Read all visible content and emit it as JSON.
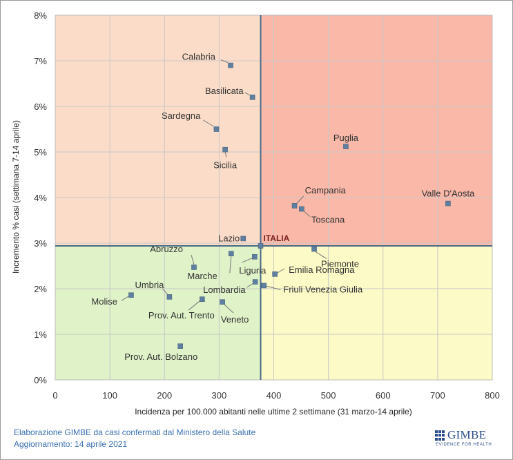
{
  "chart_data": {
    "type": "scatter",
    "xlabel": "Incidenza per 100.000  abitanti nelle ultime 2 settimane (31 marzo-14 aprile)",
    "ylabel": "Incremento % casi (settimana 7-14 aprile)",
    "xlim": [
      0,
      800
    ],
    "ylim": [
      0,
      8
    ],
    "x_ticks": [
      "0",
      "100",
      "200",
      "300",
      "400",
      "500",
      "600",
      "700",
      "800"
    ],
    "y_ticks": [
      "0%",
      "1%",
      "2%",
      "3%",
      "4%",
      "5%",
      "6%",
      "7%",
      "8%"
    ],
    "grid": true,
    "reference": {
      "label": "ITALIA",
      "x": 376,
      "y": 2.94
    },
    "quadrant_colors": {
      "top_left": "#fbdcc8",
      "top_right": "#f9b8a8",
      "bottom_left": "#dff2c8",
      "bottom_right": "#fcfac6"
    },
    "marker_color": "#5f7fa0",
    "points": [
      {
        "name": "Calabria",
        "x": 321,
        "y": 6.9
      },
      {
        "name": "Basilicata",
        "x": 361,
        "y": 6.2
      },
      {
        "name": "Sardegna",
        "x": 295,
        "y": 5.5
      },
      {
        "name": "Sicilia",
        "x": 311,
        "y": 5.05
      },
      {
        "name": "Puglia",
        "x": 532,
        "y": 5.12
      },
      {
        "name": "Campania",
        "x": 438,
        "y": 3.82
      },
      {
        "name": "Toscana",
        "x": 451,
        "y": 3.75
      },
      {
        "name": "Valle D'Aosta",
        "x": 719,
        "y": 3.87
      },
      {
        "name": "Lazio",
        "x": 344,
        "y": 3.1
      },
      {
        "name": "Piemonte",
        "x": 474,
        "y": 2.87
      },
      {
        "name": "Abruzzo",
        "x": 254,
        "y": 2.47
      },
      {
        "name": "Marche",
        "x": 322,
        "y": 2.77
      },
      {
        "name": "Liguria",
        "x": 365,
        "y": 2.7
      },
      {
        "name": "Emilia Romagna",
        "x": 402,
        "y": 2.32
      },
      {
        "name": "Lombardia",
        "x": 366,
        "y": 2.15
      },
      {
        "name": "Friuli Venezia Giulia",
        "x": 382,
        "y": 2.07
      },
      {
        "name": "Umbria",
        "x": 209,
        "y": 1.82
      },
      {
        "name": "Molise",
        "x": 139,
        "y": 1.86
      },
      {
        "name": "Prov. Aut. Trento",
        "x": 269,
        "y": 1.77
      },
      {
        "name": "Veneto",
        "x": 306,
        "y": 1.71
      },
      {
        "name": "Prov. Aut. Bolzano",
        "x": 229,
        "y": 0.74
      }
    ]
  },
  "footer": {
    "line1": "Elaborazione GIMBE da casi confermati dal Ministero della Salute",
    "line2": "Aggiornamento: 14 aprile 2021"
  },
  "logo": {
    "name": "GIMBE",
    "tagline": "EVIDENCE FOR HEALTH"
  }
}
